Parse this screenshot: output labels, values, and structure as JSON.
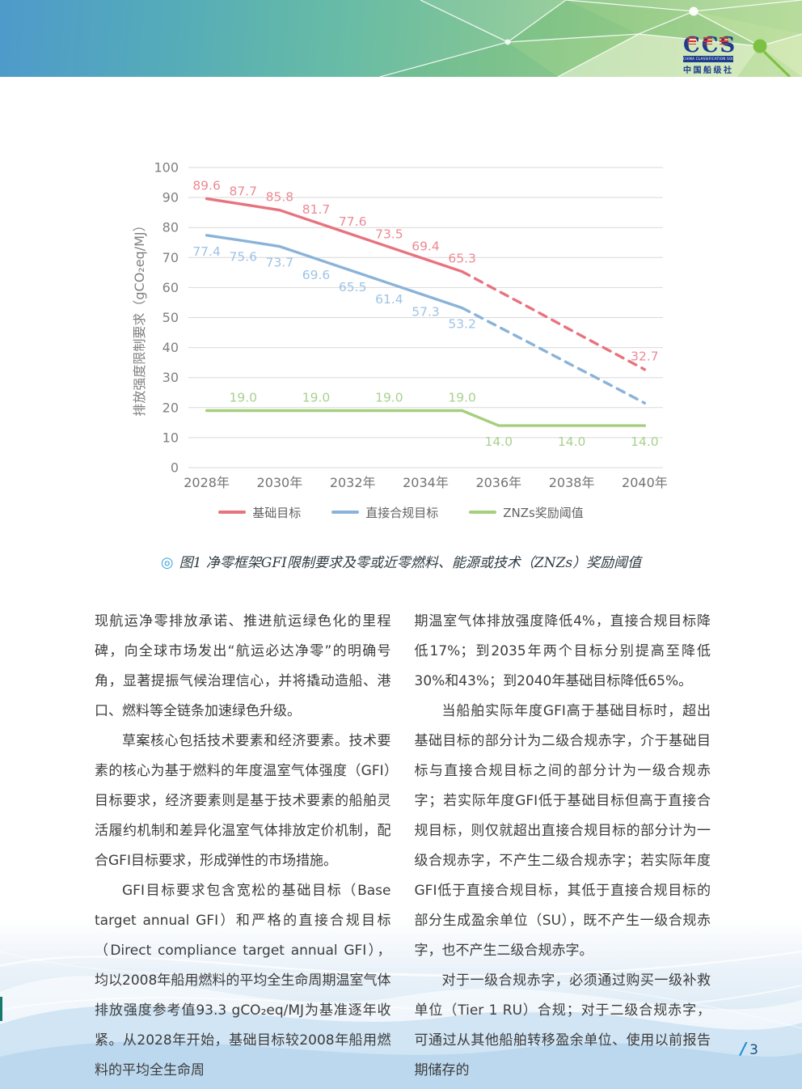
{
  "header": {
    "logo": {
      "acronym": "CCS",
      "bar_text": "CHINA CLASSIFICATION SOCIETY",
      "cn_name": "中国船级社"
    },
    "colors": {
      "gradient_left": "#4e9acb",
      "gradient_right": "#c0dfa6",
      "node_green": "#7cc142"
    }
  },
  "figure": {
    "caption_marker": "◎",
    "caption": "图1 净零框架GFI限制要求及零或近零燃料、能源或技术（ZNZs）奖励阈值"
  },
  "chart_data": {
    "type": "line",
    "title": "",
    "xlabel": "",
    "ylabel": "排放强度限制要求（gCO₂eq/MJ）",
    "ylim": [
      0,
      100
    ],
    "ytick_step": 10,
    "grid": true,
    "grid_color": "#d9d9d9",
    "axis_color": "#7f7f7f",
    "legend_position": "bottom",
    "categories": [
      "2028",
      "2029",
      "2030",
      "2031",
      "2032",
      "2033",
      "2034",
      "2035",
      "2036",
      "2037",
      "2038",
      "2039",
      "2040"
    ],
    "x_tick_labels": [
      "2028年",
      "2030年",
      "2032年",
      "2034年",
      "2036年",
      "2038年",
      "2040年"
    ],
    "x_tick_indices": [
      0,
      2,
      4,
      6,
      8,
      10,
      12
    ],
    "note": "2035年后红、蓝两线为虚线段；2036-2039年虚线段数值为插值估计，图中未标注，红线终点2040年标注32.7",
    "series": [
      {
        "id": "base-target",
        "name": "基础目标",
        "color": "#e8737f",
        "label_color": "#ec8a94",
        "dash_from": 7,
        "values": [
          89.6,
          87.7,
          85.8,
          81.7,
          77.6,
          73.5,
          69.4,
          65.3,
          58.8,
          52.3,
          45.7,
          39.2,
          32.7
        ],
        "labels": [
          {
            "i": 0,
            "text": "89.6",
            "pos": "above"
          },
          {
            "i": 1,
            "text": "87.7",
            "pos": "above"
          },
          {
            "i": 2,
            "text": "85.8",
            "pos": "above"
          },
          {
            "i": 3,
            "text": "81.7",
            "pos": "above"
          },
          {
            "i": 4,
            "text": "77.6",
            "pos": "above"
          },
          {
            "i": 5,
            "text": "73.5",
            "pos": "above"
          },
          {
            "i": 6,
            "text": "69.4",
            "pos": "above"
          },
          {
            "i": 7,
            "text": "65.3",
            "pos": "above"
          },
          {
            "i": 12,
            "text": "32.7",
            "pos": "above"
          }
        ]
      },
      {
        "id": "direct-compliance-target",
        "name": "直接合规目标",
        "color": "#8ab3d9",
        "label_color": "#9dc3e6",
        "dash_from": 7,
        "values": [
          77.4,
          75.6,
          73.7,
          69.6,
          65.5,
          61.4,
          57.3,
          53.2,
          46.9,
          40.6,
          34.2,
          27.9,
          21.5
        ],
        "labels": [
          {
            "i": 0,
            "text": "77.4",
            "pos": "below"
          },
          {
            "i": 1,
            "text": "75.6",
            "pos": "below"
          },
          {
            "i": 2,
            "text": "73.7",
            "pos": "below"
          },
          {
            "i": 3,
            "text": "69.6",
            "pos": "below"
          },
          {
            "i": 4,
            "text": "65.5",
            "pos": "below"
          },
          {
            "i": 5,
            "text": "61.4",
            "pos": "below"
          },
          {
            "i": 6,
            "text": "57.3",
            "pos": "below"
          },
          {
            "i": 7,
            "text": "53.2",
            "pos": "below"
          }
        ]
      },
      {
        "id": "znzs-reward-threshold",
        "name": "ZNZs奖励阈值",
        "color": "#a5cf7e",
        "label_color": "#a9d18e",
        "dash_from": null,
        "values": [
          19,
          19,
          19,
          19,
          19,
          19,
          19,
          19,
          14,
          14,
          14,
          14,
          14
        ],
        "labels": [
          {
            "i": 1,
            "text": "19.0",
            "pos": "above"
          },
          {
            "i": 3,
            "text": "19.0",
            "pos": "above"
          },
          {
            "i": 5,
            "text": "19.0",
            "pos": "above"
          },
          {
            "i": 7,
            "text": "19.0",
            "pos": "above"
          },
          {
            "i": 8,
            "text": "14.0",
            "pos": "below"
          },
          {
            "i": 10,
            "text": "14.0",
            "pos": "below"
          },
          {
            "i": 12,
            "text": "14.0",
            "pos": "below"
          }
        ]
      }
    ]
  },
  "article": {
    "left_column": [
      {
        "indent": false,
        "text": "现航运净零排放承诺、推进航运绿色化的里程碑，向全球市场发出“航运必达净零”的明确号角，显著提振气候治理信心，并将撬动造船、港口、燃料等全链条加速绿色升级。"
      },
      {
        "indent": true,
        "text": "草案核心包括技术要素和经济要素。技术要素的核心为基于燃料的年度温室气体强度（GFI）目标要求，经济要素则是基于技术要素的船舶灵活履约机制和差异化温室气体排放定价机制，配合GFI目标要求，形成弹性的市场措施。"
      },
      {
        "indent": true,
        "text": "GFI目标要求包含宽松的基础目标（Base target annual GFI）和严格的直接合规目标（Direct compliance target annual GFI），均以2008年船用燃料的平均全生命周期温室气体排放强度参考值93.3 gCO₂eq/MJ为基准逐年收紧。从2028年开始，基础目标较2008年船用燃料的平均全生命周"
      }
    ],
    "right_column": [
      {
        "indent": false,
        "text": "期温室气体排放强度降低4%，直接合规目标降低17%；到2035年两个目标分别提高至降低30%和43%；到2040年基础目标降低65%。"
      },
      {
        "indent": true,
        "text": "当船舶实际年度GFI高于基础目标时，超出基础目标的部分计为二级合规赤字，介于基础目标与直接合规目标之间的部分计为一级合规赤字；若实际年度GFI低于基础目标但高于直接合规目标，则仅就超出直接合规目标的部分计为一级合规赤字，不产生二级合规赤字；若实际年度GFI低于直接合规目标，其低于直接合规目标的部分生成盈余单位（SU），既不产生一级合规赤字，也不产生二级合规赤字。"
      },
      {
        "indent": true,
        "text": "对于一级合规赤字，必须通过购买一级补救单位（Tier 1 RU）合规；对于二级合规赤字，可通过从其他船舶转移盈余单位、使用以前报告期储存的"
      }
    ]
  },
  "footer": {
    "page_number_slash": "/",
    "page_number": "3"
  }
}
